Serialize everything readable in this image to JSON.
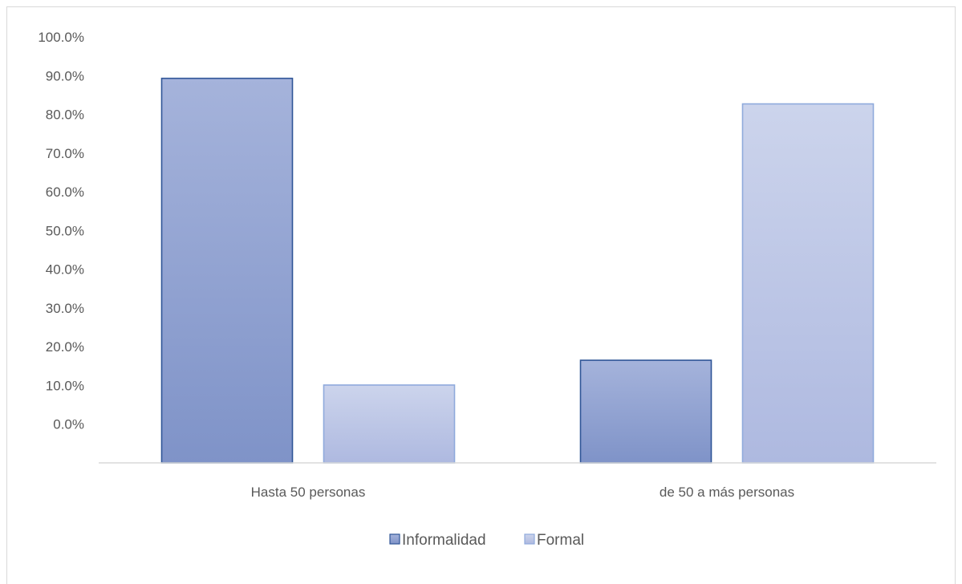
{
  "chart_data": {
    "type": "bar",
    "categories": [
      "Hasta 50 personas",
      "de 50 a más personas"
    ],
    "series": [
      {
        "name": "Informalidad",
        "values": [
          0.893,
          0.165
        ],
        "color_top": "#a5b3db",
        "color_bottom": "#7f93c8",
        "stroke": "#2f5597"
      },
      {
        "name": "Formal",
        "values": [
          0.101,
          0.827
        ],
        "color_top": "#ccd4ec",
        "color_bottom": "#aeb9e0",
        "stroke": "#8faadc"
      }
    ],
    "y_tick_values": [
      0.0,
      0.1,
      0.2,
      0.3,
      0.4,
      0.5,
      0.6,
      0.7,
      0.8,
      0.9,
      1.0
    ],
    "y_tick_labels": [
      "0.0%",
      "10.0%",
      "20.0%",
      "30.0%",
      "40.0%",
      "50.0%",
      "60.0%",
      "70.0%",
      "80.0%",
      "90.0%",
      "100.0%"
    ],
    "axis_baseline_value": -0.1,
    "ylim": [
      -0.1,
      1.0
    ],
    "grid": false,
    "legend_position": "bottom",
    "axis_color": "#d9d9d9"
  }
}
